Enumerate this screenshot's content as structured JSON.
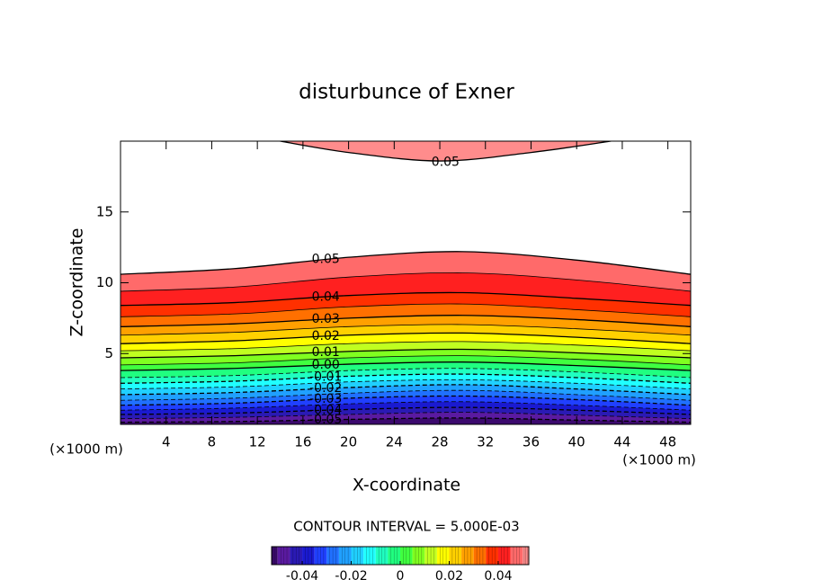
{
  "chart_data": {
    "type": "contour",
    "title": "disturbunce of Exner",
    "xlabel": "X-coordinate",
    "ylabel": "Z-coordinate",
    "x_unit": "(×1000 m)",
    "y_unit": "(×1000 m)",
    "xlim": [
      0,
      50
    ],
    "ylim": [
      0,
      20
    ],
    "xticks": [
      4,
      8,
      12,
      16,
      20,
      24,
      28,
      32,
      36,
      40,
      44,
      48
    ],
    "yticks": [
      5,
      10,
      15
    ],
    "x": [
      0,
      10,
      20,
      30,
      40,
      50
    ],
    "contours": [
      {
        "level": -0.05,
        "label": "-0.05",
        "color": "#3c0a6e",
        "z": [
          0.15,
          0.2,
          0.35,
          0.45,
          0.3,
          0.15
        ]
      },
      {
        "level": -0.045,
        "color": "#5a1aa0",
        "z": [
          0.4,
          0.5,
          0.7,
          0.85,
          0.65,
          0.4
        ]
      },
      {
        "level": -0.04,
        "label": "-0.04",
        "color": "#2a1ab4",
        "z": [
          0.7,
          0.8,
          1.05,
          1.2,
          1.0,
          0.7
        ]
      },
      {
        "level": -0.035,
        "color": "#1a1ad0",
        "z": [
          1.0,
          1.15,
          1.45,
          1.6,
          1.35,
          1.0
        ]
      },
      {
        "level": -0.03,
        "label": "-0.03",
        "color": "#2040ff",
        "z": [
          1.35,
          1.5,
          1.85,
          2.0,
          1.75,
          1.35
        ]
      },
      {
        "level": -0.025,
        "color": "#2070ff",
        "z": [
          1.7,
          1.85,
          2.2,
          2.4,
          2.1,
          1.7
        ]
      },
      {
        "level": -0.02,
        "label": "-0.02",
        "color": "#20a0ff",
        "z": [
          2.1,
          2.25,
          2.6,
          2.8,
          2.5,
          2.1
        ]
      },
      {
        "level": -0.015,
        "color": "#20d0ff",
        "z": [
          2.5,
          2.65,
          3.0,
          3.15,
          2.9,
          2.5
        ]
      },
      {
        "level": -0.01,
        "label": "-0.01",
        "color": "#20ffff",
        "z": [
          2.9,
          3.05,
          3.4,
          3.55,
          3.3,
          2.9
        ]
      },
      {
        "level": -0.005,
        "color": "#20ffc0",
        "z": [
          3.3,
          3.45,
          3.8,
          3.95,
          3.7,
          3.3
        ]
      },
      {
        "level": 0,
        "label": "0.00",
        "color": "#20ff80",
        "z": [
          3.8,
          3.95,
          4.25,
          4.4,
          4.15,
          3.8
        ]
      },
      {
        "level": 0.005,
        "color": "#40ff40",
        "z": [
          4.2,
          4.35,
          4.7,
          4.85,
          4.6,
          4.2
        ]
      },
      {
        "level": 0.01,
        "label": "0.01",
        "color": "#80ff20",
        "z": [
          4.7,
          4.85,
          5.15,
          5.3,
          5.05,
          4.7
        ]
      },
      {
        "level": 0.015,
        "color": "#c0ff20",
        "z": [
          5.2,
          5.35,
          5.7,
          5.85,
          5.6,
          5.2
        ]
      },
      {
        "level": 0.02,
        "label": "0.02",
        "color": "#ffff00",
        "z": [
          5.7,
          5.9,
          6.3,
          6.45,
          6.15,
          5.7
        ]
      },
      {
        "level": 0.025,
        "color": "#ffd000",
        "z": [
          6.3,
          6.5,
          6.9,
          7.05,
          6.75,
          6.3
        ]
      },
      {
        "level": 0.03,
        "label": "0.03",
        "color": "#ffa000",
        "z": [
          6.9,
          7.1,
          7.5,
          7.7,
          7.4,
          6.9
        ]
      },
      {
        "level": 0.035,
        "color": "#ff7000",
        "z": [
          7.6,
          7.8,
          8.3,
          8.5,
          8.1,
          7.6
        ]
      },
      {
        "level": 0.04,
        "label": "0.04",
        "color": "#ff3000",
        "z": [
          8.4,
          8.6,
          9.1,
          9.3,
          8.9,
          8.4
        ]
      },
      {
        "level": 0.045,
        "color": "#ff2020",
        "z": [
          9.4,
          9.7,
          10.4,
          10.7,
          10.2,
          9.4
        ]
      },
      {
        "level": 0.05,
        "label": "0.05",
        "color": "#ff6a6a",
        "z": [
          10.6,
          11.0,
          11.8,
          12.2,
          11.6,
          10.6
        ]
      },
      {
        "level": 0.05,
        "label": "0.05",
        "color": "#ff8c8c",
        "fill": "above",
        "x": [
          14,
          20,
          28,
          36,
          43
        ],
        "z": [
          20,
          19.2,
          18.6,
          19.2,
          20
        ]
      }
    ],
    "contour_interval": "CONTOUR INTERVAL = 5.000E-03",
    "colorbar": {
      "lim": [
        -0.0525,
        0.0525
      ],
      "ticks": [
        -0.04,
        -0.02,
        0,
        0.02,
        0.04
      ]
    }
  }
}
